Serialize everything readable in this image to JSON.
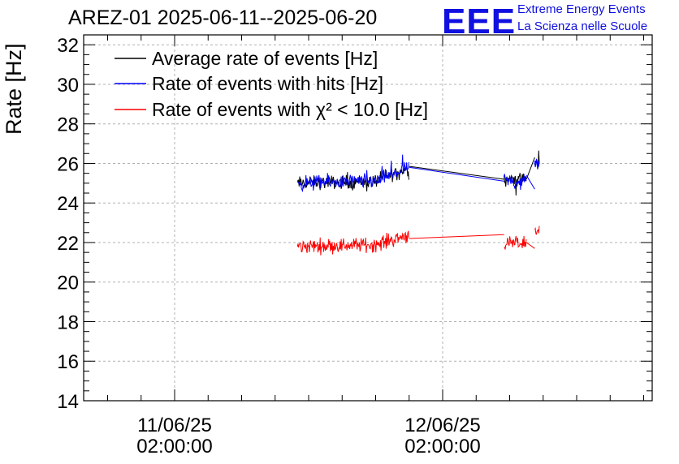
{
  "title": "AREZ-01 2025-06-11--2025-06-20",
  "logo": {
    "mark": "EEE",
    "line1": "Extreme Energy Events",
    "line2": "La Scienza nelle Scuole",
    "color": "#1010e0"
  },
  "chart_data": {
    "type": "line",
    "ylabel": "Rate [Hz]",
    "xlabel": "",
    "ylim": [
      14,
      32.5
    ],
    "yticks": [
      14,
      16,
      18,
      20,
      22,
      24,
      26,
      28,
      30,
      32
    ],
    "xticks": [
      {
        "day": "11/06/25",
        "time": "02:00:00"
      },
      {
        "day": "12/06/25",
        "time": "02:00:00"
      }
    ],
    "grid": true,
    "legend_position": "top-left",
    "series": [
      {
        "name": "Average rate of events [Hz]",
        "color": "#000000",
        "segments": [
          {
            "x": [
              "11/06/25 13:00",
              "11/06/25 20:00",
              "11/06/25 23:00"
            ],
            "mean": [
              25.0,
              25.1,
              25.8
            ],
            "noise": 0.5
          },
          {
            "x": [
              "11/06/25 23:00",
              "12/06/25 07:30"
            ],
            "mean": [
              25.85,
              25.2
            ],
            "noise": 0
          },
          {
            "x": [
              "12/06/25 07:30",
              "12/06/25 09:30"
            ],
            "mean": [
              25.2,
              25.2
            ],
            "noise": 0.5
          },
          {
            "x": [
              "12/06/25 09:30",
              "12/06/25 10:15"
            ],
            "mean": [
              25.2,
              26.3
            ],
            "noise": 0
          },
          {
            "x": [
              "12/06/25 10:15",
              "12/06/25 10:40"
            ],
            "mean": [
              26.0,
              26.0
            ],
            "noise": 0.5
          }
        ]
      },
      {
        "name": "Rate of events with hits [Hz]",
        "color": "#0000ff",
        "segments": [
          {
            "x": [
              "11/06/25 13:00",
              "11/06/25 20:00",
              "11/06/25 23:00"
            ],
            "mean": [
              25.0,
              25.1,
              25.8
            ],
            "noise": 0.55
          },
          {
            "x": [
              "11/06/25 23:00",
              "12/06/25 07:30"
            ],
            "mean": [
              25.8,
              25.1
            ],
            "noise": 0
          },
          {
            "x": [
              "12/06/25 07:30",
              "12/06/25 09:30"
            ],
            "mean": [
              25.1,
              25.1
            ],
            "noise": 0.55
          },
          {
            "x": [
              "12/06/25 09:30",
              "12/06/25 10:15"
            ],
            "mean": [
              25.4,
              24.7
            ],
            "noise": 0
          },
          {
            "x": [
              "12/06/25 10:15",
              "12/06/25 10:40"
            ],
            "mean": [
              26.0,
              26.0
            ],
            "noise": 0.6
          }
        ]
      },
      {
        "name": "Rate of events with χ² < 10.0 [Hz]",
        "color": "#ff0000",
        "segments": [
          {
            "x": [
              "11/06/25 13:00",
              "11/06/25 20:00",
              "11/06/25 23:00"
            ],
            "mean": [
              21.8,
              21.9,
              22.4
            ],
            "noise": 0.55
          },
          {
            "x": [
              "11/06/25 23:00",
              "12/06/25 07:30"
            ],
            "mean": [
              22.2,
              22.4
            ],
            "noise": 0
          },
          {
            "x": [
              "12/06/25 07:30",
              "12/06/25 09:30"
            ],
            "mean": [
              21.9,
              22.0
            ],
            "noise": 0.5
          },
          {
            "x": [
              "12/06/25 09:30",
              "12/06/25 10:15"
            ],
            "mean": [
              22.0,
              21.7
            ],
            "noise": 0
          },
          {
            "x": [
              "12/06/25 10:15",
              "12/06/25 10:40"
            ],
            "mean": [
              22.6,
              22.6
            ],
            "noise": 0.5
          }
        ]
      }
    ]
  }
}
